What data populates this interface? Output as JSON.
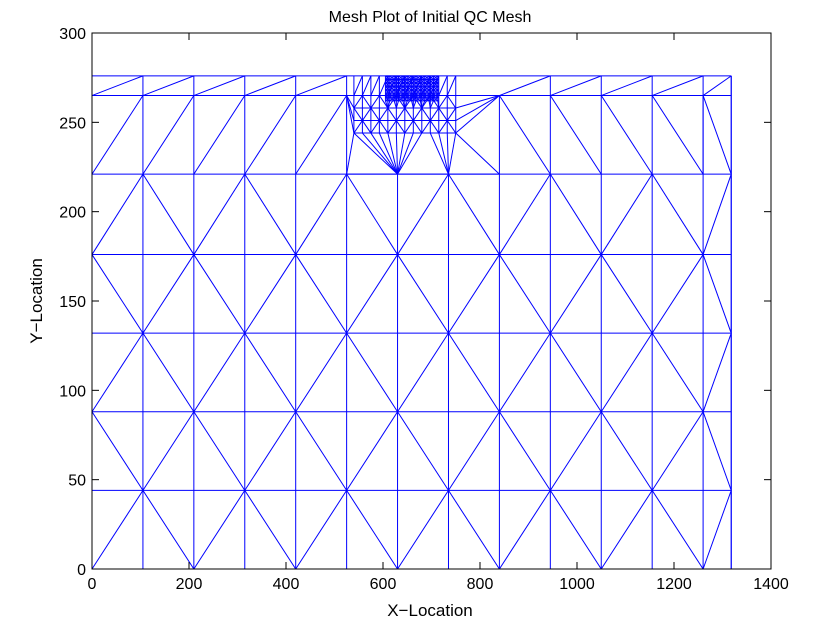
{
  "chart_data": {
    "type": "mesh",
    "title": "Mesh Plot of Initial QC Mesh",
    "xlabel": "X−Location",
    "ylabel": "Y−Location",
    "xlim": [
      0,
      1400
    ],
    "ylim": [
      0,
      300
    ],
    "xticks": [
      0,
      200,
      400,
      600,
      800,
      1000,
      1200,
      1400
    ],
    "yticks": [
      0,
      50,
      100,
      150,
      200,
      250,
      300
    ],
    "xtick_labels": [
      "0",
      "200",
      "400",
      "600",
      "800",
      "1000",
      "1200",
      "1400"
    ],
    "ytick_labels": [
      "0",
      "50",
      "100",
      "150",
      "200",
      "250",
      "300"
    ],
    "grid": false,
    "line_color": "#0000ff",
    "coarse_x": [
      0,
      105,
      210,
      315,
      420,
      525,
      630,
      735,
      840,
      945,
      1050,
      1155,
      1260,
      1318
    ],
    "coarse_rows": [
      0,
      44,
      88,
      132,
      176,
      221
    ],
    "top_rows": [
      265,
      276
    ],
    "transition_nodes": [
      {
        "x": 630,
        "y": 221
      },
      {
        "x": 735,
        "y": 221
      }
    ],
    "fine_region": {
      "x_range": [
        540,
        750
      ],
      "y_rows": [
        244,
        251,
        258,
        265
      ],
      "x_spacing_outer": 17.5,
      "x_spacing_inner": 9,
      "dense_x_range": [
        605,
        715
      ],
      "dense_y_range": [
        262,
        276
      ]
    }
  }
}
